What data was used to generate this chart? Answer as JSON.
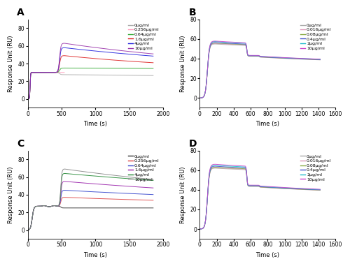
{
  "figure_size": [
    5.0,
    3.81
  ],
  "dpi": 100,
  "ylabel": "Response Unit (RU)",
  "xlabel": "Time (s)",
  "panel_A": {
    "xlim": [
      0,
      2000
    ],
    "ylim": [
      -10,
      90
    ],
    "xticks": [
      0,
      500,
      1000,
      1500,
      2000
    ],
    "yticks": [
      0,
      20,
      40,
      60,
      80
    ],
    "legend_labels": [
      "0μg/ml",
      "0.256μg/ml",
      "0.64μg/ml",
      "1.6μg/ml",
      "4μg/ml",
      "10μg/ml"
    ],
    "colors": [
      "#aaaaaa",
      "#ff99bb",
      "#33aa33",
      "#dd2222",
      "#2222dd",
      "#9933aa"
    ],
    "t_rise1_start": 10,
    "t_rise1_end": 60,
    "t_flat_end": 400,
    "t_rise2_end": 540,
    "t_end": 1850,
    "baseline": 0,
    "flat_val": 30,
    "peak_vals": [
      27.5,
      30.0,
      35.0,
      49.0,
      58.0,
      63.0
    ],
    "dissoc_end_vals": [
      26.5,
      29.0,
      34.5,
      41.0,
      48.5,
      51.0
    ]
  },
  "panel_B": {
    "xlim": [
      0,
      1600
    ],
    "ylim": [
      -10,
      80
    ],
    "xticks": [
      0,
      200,
      400,
      600,
      800,
      1000,
      1200,
      1400,
      1600
    ],
    "yticks": [
      0,
      20,
      40,
      60,
      80
    ],
    "legend_labels": [
      "0μg/ml",
      "0.016μg/ml",
      "0.08μg/ml",
      "0.4μg/ml",
      "2μg/ml",
      "10μg/ml"
    ],
    "colors": [
      "#aaaaaa",
      "#dd99bb",
      "#88aa44",
      "#4455cc",
      "#22bbcc",
      "#cc44cc"
    ],
    "t_rise_start": 5,
    "t_peak": 175,
    "t_decay1_end": 530,
    "t_step1_end": 580,
    "t_flat2_end": 680,
    "t_step2_end": 730,
    "t_end": 1420,
    "peak_offsets": [
      0.0,
      0.5,
      1.0,
      1.5,
      2.5,
      3.0
    ],
    "peak_base": 55.0,
    "post_peak_base": 52.0,
    "step1_base": 42.5,
    "step2_base": 41.5,
    "end_base": 34.0
  },
  "panel_C": {
    "xlim": [
      0,
      2000
    ],
    "ylim": [
      -10,
      90
    ],
    "xticks": [
      0,
      500,
      1000,
      1500,
      2000
    ],
    "yticks": [
      0,
      20,
      40,
      60,
      80
    ],
    "legend_labels": [
      "0μg/ml",
      "0.256μg/ml",
      "0.64μg/ml",
      "1.6μg/ml",
      "4μg/ml",
      "10μg/ml"
    ],
    "colors": [
      "#333333",
      "#dd4444",
      "#3344cc",
      "#9922aa",
      "#228833",
      "#888888"
    ],
    "t_rise1_start": 5,
    "t_rise1_end": 200,
    "t_flat_end": 430,
    "t_rise2_end": 545,
    "t_end": 1850,
    "flat_val": 27.0,
    "peak_vals": [
      25.0,
      37.0,
      45.0,
      55.0,
      64.0,
      69.0
    ],
    "dissoc_end_vals": [
      25.0,
      33.5,
      40.0,
      47.5,
      56.0,
      57.0
    ]
  },
  "panel_D": {
    "xlim": [
      0,
      1600
    ],
    "ylim": [
      -10,
      80
    ],
    "xticks": [
      0,
      200,
      400,
      600,
      800,
      1000,
      1200,
      1400,
      1600
    ],
    "yticks": [
      0,
      20,
      40,
      60,
      80
    ],
    "legend_labels": [
      "0μg/ml",
      "0.016μg/ml",
      "0.08μg/ml",
      "0.4μg/ml",
      "2μg/ml",
      "10μg/ml"
    ],
    "colors": [
      "#aaaaaa",
      "#dd99bb",
      "#88aa44",
      "#4455cc",
      "#22bbcc",
      "#cc44cc"
    ],
    "t_rise_start": 5,
    "t_peak": 175,
    "t_decay1_end": 530,
    "t_step1_end": 580,
    "t_flat2_end": 680,
    "t_step2_end": 730,
    "t_end": 1420,
    "peak_offsets": [
      0.0,
      0.5,
      1.0,
      2.0,
      3.0,
      4.0
    ],
    "peak_base": 62.0,
    "post_peak_base": 59.0,
    "step1_base": 43.5,
    "step2_base": 42.5,
    "end_base": 34.5
  }
}
